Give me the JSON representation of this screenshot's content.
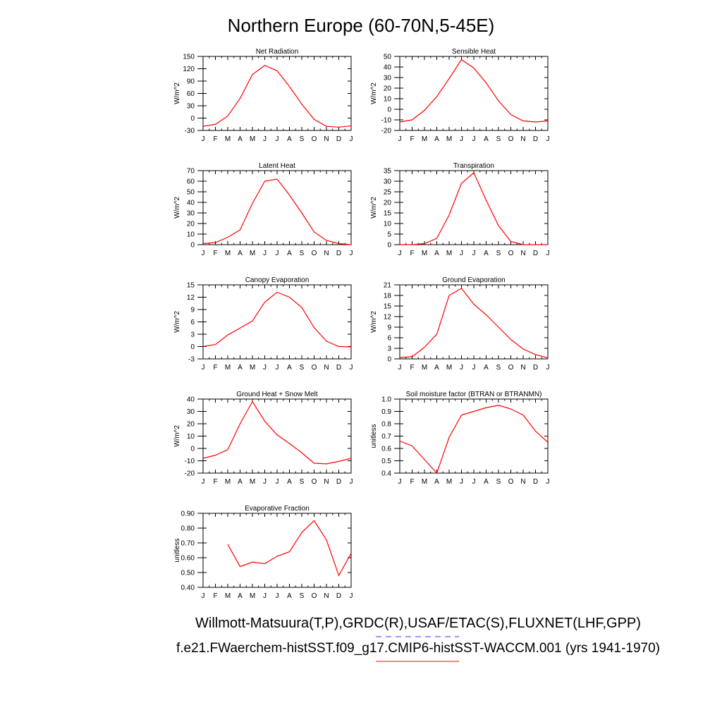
{
  "page": {
    "title": "Northern Europe (60-70N,5-45E)",
    "legend": [
      {
        "text": "Willmott-Matsuura(T,P),GRDC(R),USAF/ETAC(S),FLUXNET(LHF,GPP)",
        "color": "#3333ff",
        "style": "dashed"
      },
      {
        "text": "f.e21.FWaerchem-histSST.f09_g17.CMIP6-histSST-WACCM.001 (yrs 1941-1970)",
        "color": "#ff0000",
        "style": "solid"
      }
    ]
  },
  "chart_data": [
    {
      "type": "line",
      "title": "Net Radiation",
      "ylabel": "W/m^2",
      "categories": [
        "J",
        "F",
        "M",
        "A",
        "M",
        "J",
        "J",
        "A",
        "S",
        "O",
        "N",
        "D",
        "J"
      ],
      "ylim": [
        -30,
        150
      ],
      "yticks": [
        -30,
        0,
        30,
        60,
        90,
        120,
        150
      ],
      "yticklabels": [
        "-30",
        "0",
        "30",
        "60",
        "90",
        "120",
        "150"
      ],
      "series": [
        {
          "color": "#ff0000",
          "values": [
            -20,
            -15,
            5,
            48,
            106,
            128,
            115,
            77,
            34,
            -3,
            -20,
            -22,
            -19
          ]
        }
      ]
    },
    {
      "type": "line",
      "title": "Sensible Heat",
      "ylabel": "W/m^2",
      "categories": [
        "J",
        "F",
        "M",
        "A",
        "M",
        "J",
        "J",
        "A",
        "S",
        "O",
        "N",
        "D",
        "J"
      ],
      "ylim": [
        -20,
        50
      ],
      "yticks": [
        -20,
        -10,
        0,
        10,
        20,
        30,
        40,
        50
      ],
      "yticklabels": [
        "-20",
        "-10",
        "0",
        "10",
        "20",
        "30",
        "40",
        "50"
      ],
      "series": [
        {
          "color": "#ff0000",
          "values": [
            -12,
            -10,
            -1,
            12,
            29,
            47,
            39,
            25,
            8,
            -5,
            -11,
            -12,
            -11
          ]
        }
      ]
    },
    {
      "type": "line",
      "title": "Latent Heat",
      "ylabel": "W/m^2",
      "categories": [
        "J",
        "F",
        "M",
        "A",
        "M",
        "J",
        "J",
        "A",
        "S",
        "O",
        "N",
        "D",
        "J"
      ],
      "ylim": [
        0,
        70
      ],
      "yticks": [
        0,
        10,
        20,
        30,
        40,
        50,
        60,
        70
      ],
      "yticklabels": [
        "0",
        "10",
        "20",
        "30",
        "40",
        "50",
        "60",
        "70"
      ],
      "series": [
        {
          "color": "#ff0000",
          "values": [
            1,
            2,
            7,
            14,
            39,
            60,
            62,
            47,
            30,
            12,
            4,
            1,
            0
          ]
        }
      ]
    },
    {
      "type": "line",
      "title": "Transpiration",
      "ylabel": "W/m^2",
      "categories": [
        "J",
        "F",
        "M",
        "A",
        "M",
        "J",
        "J",
        "A",
        "S",
        "O",
        "N",
        "D",
        "J"
      ],
      "ylim": [
        0,
        35
      ],
      "yticks": [
        0,
        5,
        10,
        15,
        20,
        25,
        30,
        35
      ],
      "yticklabels": [
        "0",
        "5",
        "10",
        "15",
        "20",
        "25",
        "30",
        "35"
      ],
      "series": [
        {
          "color": "#ff0000",
          "values": [
            0,
            0,
            0.5,
            3,
            14,
            29,
            34,
            21,
            9,
            1.5,
            0,
            0,
            0
          ]
        }
      ]
    },
    {
      "type": "line",
      "title": "Canopy Evaporation",
      "ylabel": "W/m^2",
      "categories": [
        "J",
        "F",
        "M",
        "A",
        "M",
        "J",
        "J",
        "A",
        "S",
        "O",
        "N",
        "D",
        "J"
      ],
      "ylim": [
        -3,
        15
      ],
      "yticks": [
        -3,
        0,
        3,
        6,
        9,
        12,
        15
      ],
      "yticklabels": [
        "-3",
        "0",
        "3",
        "6",
        "9",
        "12",
        "15"
      ],
      "series": [
        {
          "color": "#ff0000",
          "values": [
            0,
            0.5,
            2.8,
            4.5,
            6.2,
            10.8,
            13.2,
            12,
            9.5,
            4.6,
            1.3,
            0,
            -0.1
          ]
        }
      ]
    },
    {
      "type": "line",
      "title": "Ground Evaporation",
      "ylabel": "W/m^2",
      "categories": [
        "J",
        "F",
        "M",
        "A",
        "M",
        "J",
        "J",
        "A",
        "S",
        "O",
        "N",
        "D",
        "J"
      ],
      "ylim": [
        0,
        21
      ],
      "yticks": [
        0,
        3,
        6,
        9,
        12,
        15,
        18,
        21
      ],
      "yticklabels": [
        "0",
        "3",
        "6",
        "9",
        "12",
        "15",
        "18",
        "21"
      ],
      "series": [
        {
          "color": "#ff0000",
          "values": [
            0.4,
            0.6,
            3.3,
            7,
            18,
            20,
            15.5,
            12.5,
            9,
            5.5,
            2.8,
            1.2,
            0.3
          ]
        }
      ]
    },
    {
      "type": "line",
      "title": "Ground Heat + Snow Melt",
      "ylabel": "W/m^2",
      "categories": [
        "J",
        "F",
        "M",
        "A",
        "M",
        "J",
        "J",
        "A",
        "S",
        "O",
        "N",
        "D",
        "J"
      ],
      "ylim": [
        -20,
        40
      ],
      "yticks": [
        -20,
        -10,
        0,
        10,
        20,
        30,
        40
      ],
      "yticklabels": [
        "-20",
        "-10",
        "0",
        "10",
        "20",
        "30",
        "40"
      ],
      "series": [
        {
          "color": "#ff0000",
          "values": [
            -8,
            -5.5,
            -1,
            20,
            38,
            22,
            11,
            4,
            -3.5,
            -12,
            -12.5,
            -10.5,
            -8
          ]
        }
      ]
    },
    {
      "type": "line",
      "title": "Soil moisture factor (BTRAN or BTRANMN)",
      "ylabel": "unitless",
      "categories": [
        "J",
        "F",
        "M",
        "A",
        "M",
        "J",
        "J",
        "A",
        "S",
        "O",
        "N",
        "D",
        "J"
      ],
      "ylim": [
        0.4,
        1.0
      ],
      "yticks": [
        0.4,
        0.5,
        0.6,
        0.7,
        0.8,
        0.9,
        1.0
      ],
      "yticklabels": [
        "0.4",
        "0.5",
        "0.6",
        "0.7",
        "0.8",
        "0.9",
        "1.0"
      ],
      "series": [
        {
          "color": "#ff0000",
          "values": [
            0.66,
            0.62,
            0.51,
            0.4,
            0.69,
            0.87,
            0.9,
            0.93,
            0.95,
            0.92,
            0.87,
            0.74,
            0.65
          ]
        }
      ]
    },
    {
      "type": "line",
      "title": "Evaporative Fraction",
      "ylabel": "unitless",
      "categories": [
        "J",
        "F",
        "M",
        "A",
        "M",
        "J",
        "J",
        "A",
        "S",
        "O",
        "N",
        "D",
        "J"
      ],
      "ylim": [
        0.4,
        0.9
      ],
      "yticks": [
        0.4,
        0.5,
        0.6,
        0.7,
        0.8,
        0.9
      ],
      "yticklabels": [
        "0.40",
        "0.50",
        "0.60",
        "0.70",
        "0.80",
        "0.90"
      ],
      "series": [
        {
          "color": "#ff0000",
          "values": [
            null,
            null,
            0.69,
            0.54,
            0.57,
            0.56,
            0.61,
            0.64,
            0.77,
            0.85,
            0.72,
            0.48,
            0.63
          ]
        }
      ]
    }
  ]
}
